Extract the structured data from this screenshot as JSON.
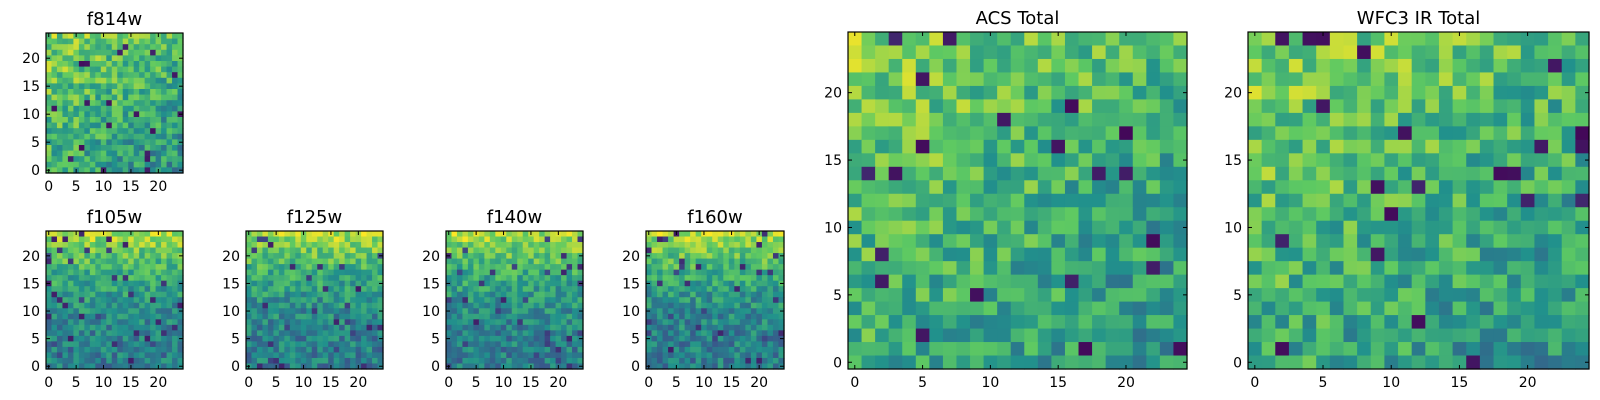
{
  "chart_data": [
    {
      "type": "heatmap",
      "title": "f814w",
      "gradient": "topleft",
      "xlim": [
        0,
        25
      ],
      "ylim": [
        0,
        25
      ],
      "xticks": [
        "0",
        "5",
        "10",
        "15",
        "20"
      ],
      "yticks": [
        "0",
        "5",
        "10",
        "15",
        "20"
      ]
    },
    {
      "type": "heatmap",
      "title": "f105w",
      "gradient": "top",
      "xlim": [
        0,
        25
      ],
      "ylim": [
        0,
        25
      ],
      "xticks": [
        "0",
        "5",
        "10",
        "15",
        "20"
      ],
      "yticks": [
        "0",
        "5",
        "10",
        "15",
        "20"
      ]
    },
    {
      "type": "heatmap",
      "title": "f125w",
      "gradient": "top",
      "xlim": [
        0,
        25
      ],
      "ylim": [
        0,
        25
      ],
      "xticks": [
        "0",
        "5",
        "10",
        "15",
        "20"
      ],
      "yticks": [
        "0",
        "5",
        "10",
        "15",
        "20"
      ]
    },
    {
      "type": "heatmap",
      "title": "f140w",
      "gradient": "top",
      "xlim": [
        0,
        25
      ],
      "ylim": [
        0,
        25
      ],
      "xticks": [
        "0",
        "5",
        "10",
        "15",
        "20"
      ],
      "yticks": [
        "0",
        "5",
        "10",
        "15",
        "20"
      ]
    },
    {
      "type": "heatmap",
      "title": "f160w",
      "gradient": "top",
      "xlim": [
        0,
        25
      ],
      "ylim": [
        0,
        25
      ],
      "xticks": [
        "0",
        "5",
        "10",
        "15",
        "20"
      ],
      "yticks": [
        "0",
        "5",
        "10",
        "15",
        "20"
      ]
    },
    {
      "type": "heatmap",
      "title": "ACS Total",
      "gradient": "topleft",
      "xlim": [
        0,
        25
      ],
      "ylim": [
        0,
        25
      ],
      "xticks": [
        "0",
        "5",
        "10",
        "15",
        "20"
      ],
      "yticks": [
        "0",
        "5",
        "10",
        "15",
        "20"
      ]
    },
    {
      "type": "heatmap",
      "title": "WFC3 IR Total",
      "gradient": "topleft",
      "xlim": [
        0,
        25
      ],
      "ylim": [
        0,
        25
      ],
      "xticks": [
        "0",
        "5",
        "10",
        "15",
        "20"
      ],
      "yticks": [
        "0",
        "5",
        "10",
        "15",
        "20"
      ]
    }
  ],
  "colors": {
    "colormap": [
      "#440154",
      "#3b528b",
      "#21918c",
      "#5ec962",
      "#fde725"
    ],
    "axes": "#000000",
    "background": "#ffffff"
  }
}
